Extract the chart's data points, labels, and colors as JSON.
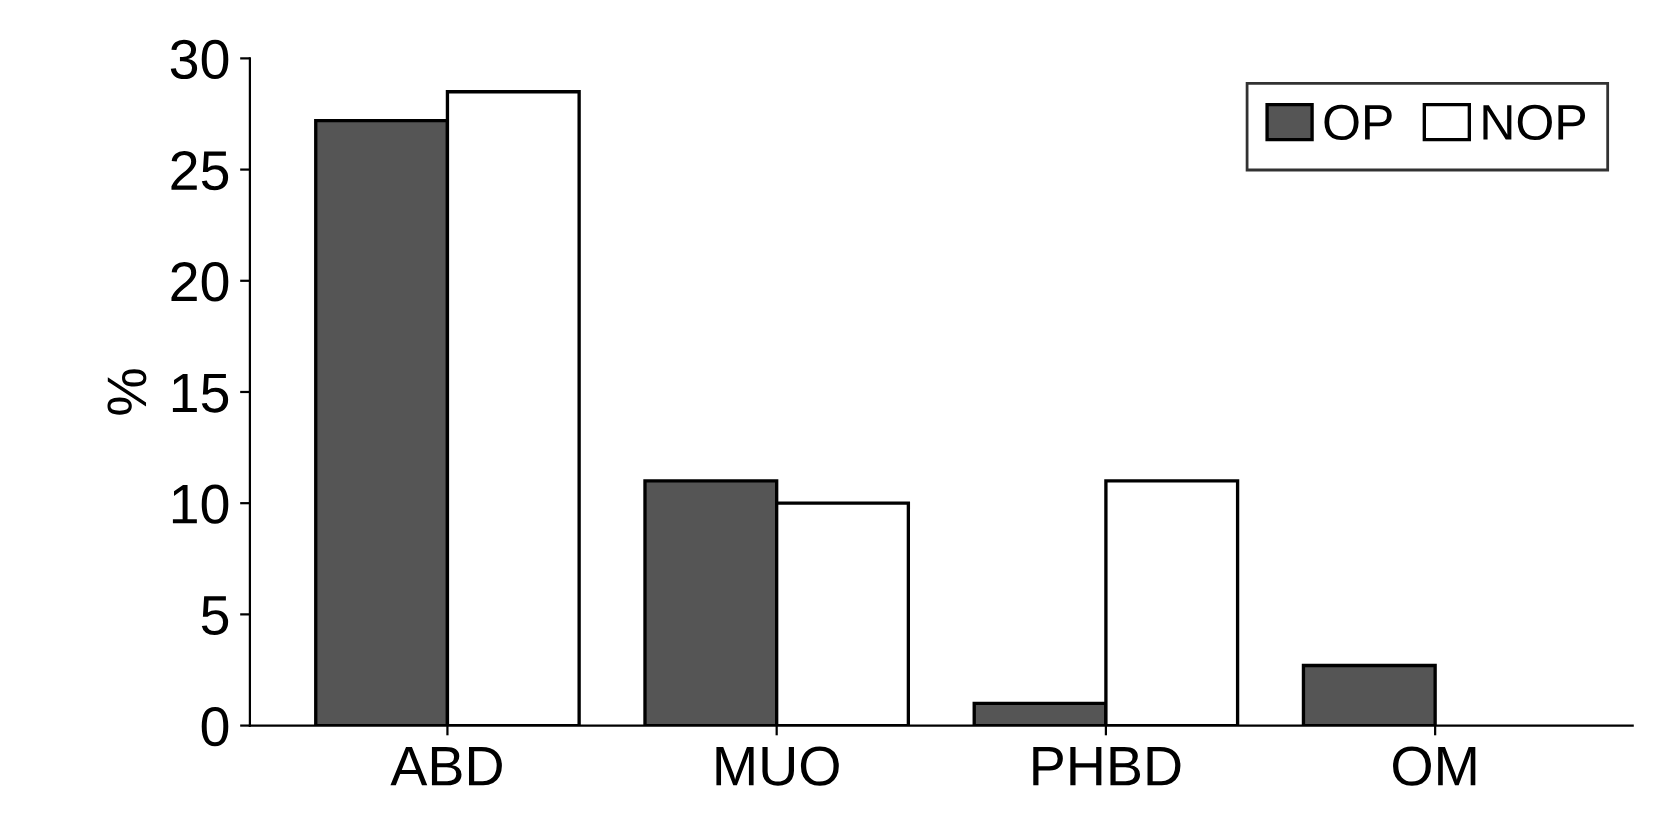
{
  "chart_data": {
    "type": "bar",
    "ylabel": "%",
    "categories": [
      "ABD",
      "MUO",
      "PHBD",
      "OM"
    ],
    "series": [
      {
        "name": "OP",
        "color": "#555555",
        "values": [
          27.2,
          11,
          1,
          2.7
        ]
      },
      {
        "name": "NOP",
        "color": "#ffffff",
        "values": [
          28.5,
          10,
          11,
          0
        ]
      }
    ],
    "ylim": [
      0,
      30
    ],
    "yticks": [
      0,
      5,
      10,
      15,
      20,
      25,
      30
    ],
    "grid": false,
    "legend": "top right"
  }
}
